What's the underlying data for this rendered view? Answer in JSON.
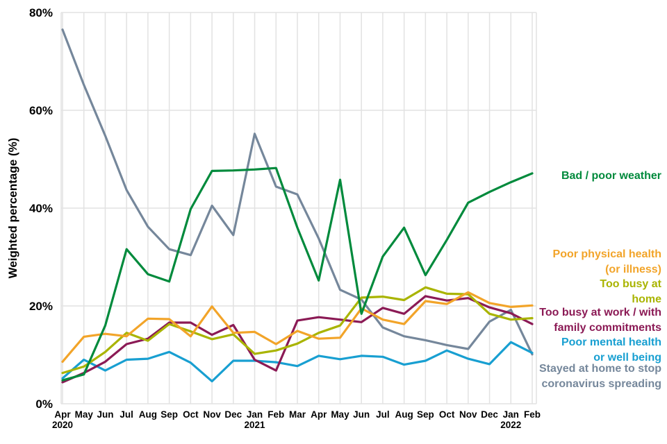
{
  "chart_data": {
    "type": "line",
    "title": "",
    "xlabel": "",
    "ylabel": "Weighted percentage (%)",
    "ylim": [
      0,
      80
    ],
    "grid": true,
    "legend_position": "right-outside",
    "axis_text_color": "#000000",
    "gridline_color": "#e2e2e2",
    "y_ticks": [
      {
        "value": 0,
        "label": "0%"
      },
      {
        "value": 20,
        "label": "20%"
      },
      {
        "value": 40,
        "label": "40%"
      },
      {
        "value": 60,
        "label": "60%"
      },
      {
        "value": 80,
        "label": "80%"
      }
    ],
    "categories": [
      "Apr",
      "May",
      "Jun",
      "Jul",
      "Aug",
      "Sep",
      "Oct",
      "Nov",
      "Dec",
      "Jan",
      "Feb",
      "Mar",
      "Apr",
      "May",
      "Jun",
      "Jul",
      "Aug",
      "Sep",
      "Oct",
      "Nov",
      "Dec",
      "Jan",
      "Feb"
    ],
    "year_labels": [
      {
        "index": 0,
        "label": "2020"
      },
      {
        "index": 9,
        "label": "2021"
      },
      {
        "index": 21,
        "label": "2022"
      }
    ],
    "series": [
      {
        "name": "Bad / poor weather",
        "color": "#008A3C",
        "legend_lines": [
          "Bad / poor weather"
        ],
        "legend_baselines": [
          258
        ],
        "values": [
          4.8,
          6.0,
          16.0,
          31.6,
          26.5,
          25.0,
          39.8,
          47.6,
          47.7,
          47.9,
          48.2,
          36.0,
          25.2,
          45.8,
          18.4,
          30.1,
          36.0,
          26.3,
          33.5,
          41.1,
          43.3,
          45.3,
          47.1
        ]
      },
      {
        "name": "Poor physical health (or illness)",
        "color": "#F2A429",
        "legend_lines": [
          "Poor physical health",
          "(or illness)"
        ],
        "legend_baselines": [
          371,
          393
        ],
        "values": [
          8.6,
          13.7,
          14.3,
          13.8,
          17.4,
          17.3,
          13.8,
          19.9,
          14.5,
          14.7,
          12.2,
          14.9,
          13.3,
          13.5,
          19.5,
          17.2,
          16.3,
          21.0,
          20.4,
          22.8,
          20.6,
          19.8,
          20.1
        ]
      },
      {
        "name": "Too busy at home",
        "color": "#A9B400",
        "legend_lines": [
          "Too busy at",
          "home"
        ],
        "legend_baselines": [
          414,
          436
        ],
        "values": [
          6.3,
          7.6,
          10.6,
          14.5,
          12.9,
          16.3,
          14.8,
          13.2,
          14.2,
          10.2,
          10.9,
          12.3,
          14.5,
          16.0,
          21.7,
          21.9,
          21.2,
          23.8,
          22.5,
          22.4,
          18.4,
          17.2,
          17.5
        ]
      },
      {
        "name": "Too busy at work / with family commitments",
        "color": "#8B1A55",
        "legend_lines": [
          "Too busy at work / with",
          "family commitments"
        ],
        "legend_baselines": [
          455,
          477
        ],
        "values": [
          4.4,
          6.3,
          8.6,
          12.2,
          13.3,
          16.6,
          16.6,
          14.1,
          16.1,
          9.0,
          6.8,
          17.0,
          17.7,
          17.2,
          16.7,
          19.6,
          18.4,
          22.0,
          21.1,
          21.6,
          19.7,
          18.5,
          16.3
        ]
      },
      {
        "name": "Poor mental health or well being",
        "color": "#189FD1",
        "legend_lines": [
          "Poor mental health",
          "or well being"
        ],
        "legend_baselines": [
          498,
          520
        ],
        "values": [
          5.2,
          9.0,
          6.8,
          9.0,
          9.2,
          10.6,
          8.4,
          4.6,
          8.8,
          8.8,
          8.5,
          7.7,
          9.8,
          9.1,
          9.8,
          9.6,
          8.0,
          8.8,
          10.9,
          9.2,
          8.1,
          12.6,
          10.4
        ]
      },
      {
        "name": "Stayed at home to stop coronavirus spreading",
        "color": "#75879B",
        "legend_lines": [
          "Stayed at home to stop",
          "coronavirus spreading"
        ],
        "legend_baselines": [
          536,
          558
        ],
        "values": [
          76.5,
          65.2,
          54.8,
          43.7,
          36.2,
          31.6,
          30.4,
          40.5,
          34.5,
          55.2,
          44.4,
          42.8,
          33.8,
          23.3,
          21.3,
          15.6,
          13.8,
          13.0,
          12.0,
          11.2,
          16.8,
          19.2,
          10.1
        ]
      }
    ]
  }
}
